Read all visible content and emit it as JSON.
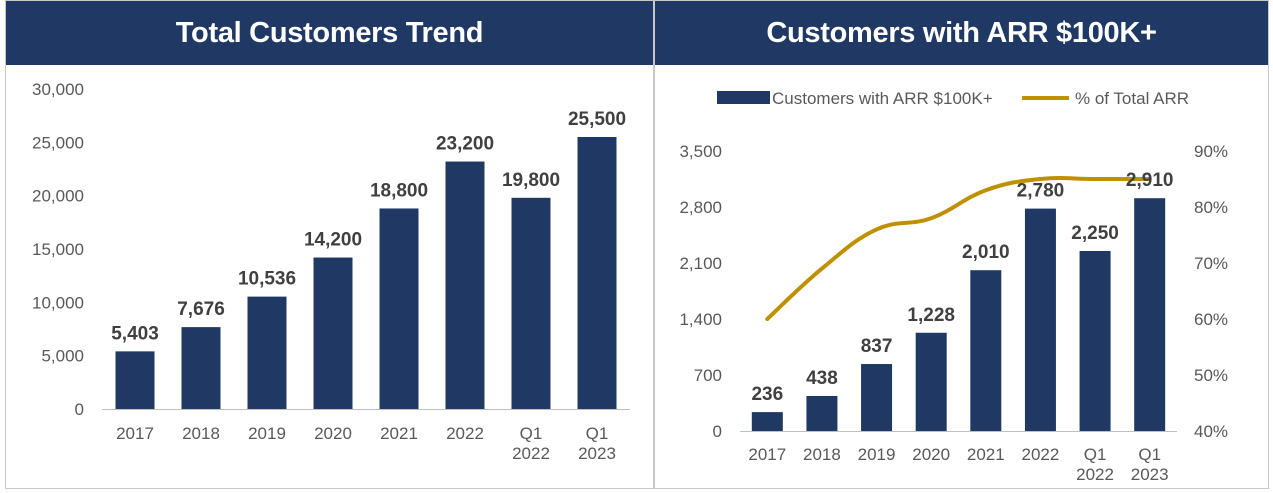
{
  "charts": {
    "left": {
      "header": "Total Customers Trend"
    },
    "right": {
      "header": "Customers with ARR $100K+"
    }
  },
  "colors": {
    "bar": "#1f3864",
    "line": "#bf9000",
    "header_bg": "#1f3864"
  },
  "chart_data": [
    {
      "type": "bar",
      "title": "Total Customers Trend",
      "categories": [
        "2017",
        "2018",
        "2019",
        "2020",
        "2021",
        "2022",
        "Q1\n2022",
        "Q1\n2023"
      ],
      "values": [
        5403,
        7676,
        10536,
        14200,
        18800,
        23200,
        19800,
        25500
      ],
      "value_labels": [
        "5,403",
        "7,676",
        "10,536",
        "14,200",
        "18,800",
        "23,200",
        "19,800",
        "25,500"
      ],
      "ylim": [
        0,
        30000
      ],
      "yticks": [
        0,
        5000,
        10000,
        15000,
        20000,
        25000,
        30000
      ],
      "ytick_labels": [
        "0",
        "5,000",
        "10,000",
        "15,000",
        "20,000",
        "25,000",
        "30,000"
      ],
      "xlabel": "",
      "ylabel": "",
      "grid": false
    },
    {
      "type": "bar",
      "title": "Customers with ARR $100K+",
      "categories": [
        "2017",
        "2018",
        "2019",
        "2020",
        "2021",
        "2022",
        "Q1\n2022",
        "Q1\n2023"
      ],
      "series": [
        {
          "name": "Customers with ARR $100K+",
          "type": "bar",
          "axis": "left",
          "values": [
            236,
            438,
            837,
            1228,
            2010,
            2780,
            2250,
            2910
          ],
          "value_labels": [
            "236",
            "438",
            "837",
            "1,228",
            "2,010",
            "2,780",
            "2,250",
            "2,910"
          ]
        },
        {
          "name": "% of Total ARR",
          "type": "line",
          "axis": "right",
          "values": [
            60,
            69,
            76,
            78,
            83,
            85,
            85,
            85
          ]
        }
      ],
      "ylim": [
        0,
        3500
      ],
      "yticks": [
        0,
        700,
        1400,
        2100,
        2800,
        3500
      ],
      "ytick_labels": [
        "0",
        "700",
        "1,400",
        "2,100",
        "2,800",
        "3,500"
      ],
      "y2lim": [
        40,
        90
      ],
      "y2ticks": [
        40,
        50,
        60,
        70,
        80,
        90
      ],
      "y2tick_labels": [
        "40%",
        "50%",
        "60%",
        "70%",
        "80%",
        "90%"
      ],
      "legend": "top",
      "grid": false
    }
  ]
}
